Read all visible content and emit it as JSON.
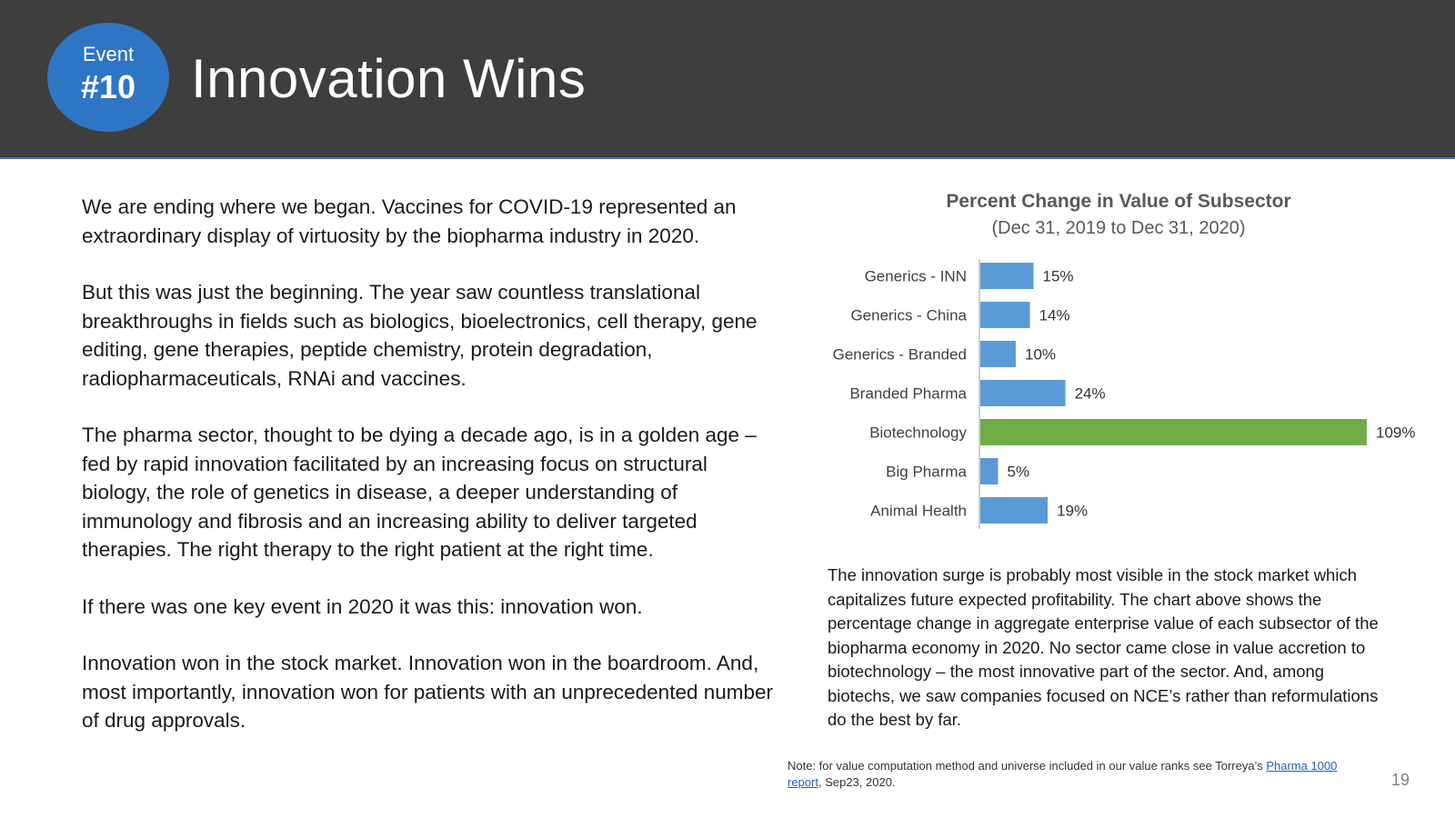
{
  "header": {
    "badge_label": "Event",
    "badge_number": "#10",
    "title": "Innovation Wins"
  },
  "body": {
    "paragraphs": [
      "We are ending where we began. Vaccines for COVID-19 represented an extraordinary display of virtuosity by the biopharma industry in 2020.",
      "But this was just the beginning. The year saw countless translational breakthroughs in fields such as biologics, bioelectronics, cell therapy, gene editing, gene therapies, peptide chemistry, protein degradation, radiopharmaceuticals, RNAi and vaccines.",
      "The pharma sector, thought to be dying a decade ago, is in a golden age – fed by rapid innovation facilitated by an increasing focus on structural biology, the role of genetics in disease, a deeper understanding of immunology and fibrosis and an increasing ability to deliver targeted therapies. The right therapy to the right patient at the right time.",
      "If there was one key event in 2020 it was this: innovation won.",
      "Innovation won in the stock market. Innovation won in the boardroom. And, most importantly, innovation won for patients with an unprecedented number of drug approvals."
    ]
  },
  "chart_data": {
    "type": "bar",
    "orientation": "horizontal",
    "title": "Percent Change in Value of Subsector",
    "subtitle": "(Dec 31, 2019 to Dec 31, 2020)",
    "categories": [
      "Generics - INN",
      "Generics - China",
      "Generics - Branded",
      "Branded Pharma",
      "Biotechnology",
      "Big Pharma",
      "Animal Health"
    ],
    "values": [
      15,
      14,
      10,
      24,
      109,
      5,
      19
    ],
    "labels": [
      "15%",
      "14%",
      "10%",
      "24%",
      "109%",
      "5%",
      "19%"
    ],
    "unit": "%",
    "xlim": [
      0,
      109
    ],
    "colors": {
      "default": "#5b9bd5",
      "highlight": "#70ad47",
      "highlight_category": "Biotechnology",
      "axis": "#bfbfbf",
      "label": "#333333",
      "category_text": "#404040"
    }
  },
  "caption": "The innovation surge is probably most visible in the stock market which capitalizes future expected profitability. The chart above shows the percentage change in aggregate enterprise value of each subsector of the biopharma economy in 2020. No sector came close in value accretion to biotechnology – the most innovative part of the sector. And, among biotechs, we saw companies focused on NCE’s rather than reformulations do the best by far.",
  "note": {
    "prefix": "Note: for value computation method and universe included in our value ranks see Torreya’s ",
    "link": "Pharma 1000 report",
    "suffix": ", Sep23, 2020."
  },
  "page_number": "19"
}
